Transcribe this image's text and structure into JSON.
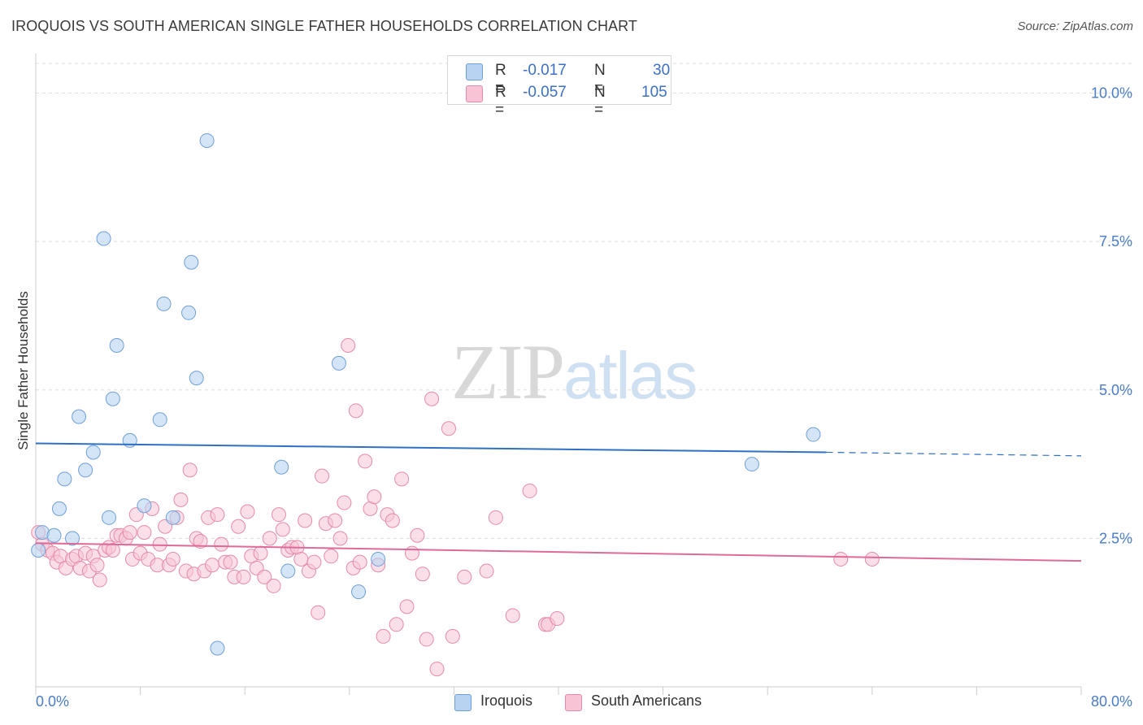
{
  "header": {
    "title": "IROQUOIS VS SOUTH AMERICAN SINGLE FATHER HOUSEHOLDS CORRELATION CHART",
    "source": "Source: ZipAtlas.com"
  },
  "watermark": {
    "zip": "ZIP",
    "atlas": "atlas"
  },
  "legend": {
    "rows": [
      {
        "r_label": "R =",
        "r_value": "-0.017",
        "n_label": "N =",
        "n_value": "30"
      },
      {
        "r_label": "R =",
        "r_value": "-0.057",
        "n_label": "N =",
        "n_value": "105"
      }
    ]
  },
  "bottom_legend": {
    "series1": "Iroquois",
    "series2": "South Americans"
  },
  "colors": {
    "iroquois_fill": "#b8d3f2",
    "iroquois_stroke": "#6f9fd8",
    "iroquois_line": "#2f6fc4",
    "south_fill": "#f8c4d5",
    "south_stroke": "#e58aa9",
    "south_line": "#e06a97"
  },
  "chart_data": {
    "type": "scatter",
    "title": "IROQUOIS VS SOUTH AMERICAN SINGLE FATHER HOUSEHOLDS CORRELATION CHART",
    "xlabel": "",
    "ylabel": "Single Father Households",
    "xlim": [
      0,
      80
    ],
    "ylim": [
      0,
      10.5
    ],
    "x_tick_labels": [
      "0.0%",
      "80.0%"
    ],
    "y_ticks": [
      2.5,
      5.0,
      7.5,
      10.0
    ],
    "y_tick_labels": [
      "2.5%",
      "5.0%",
      "7.5%",
      "10.0%"
    ],
    "grid": true,
    "series": [
      {
        "name": "Iroquois",
        "r": -0.017,
        "n": 30,
        "trend": {
          "x0": 0,
          "y0": 4.1,
          "x1": 60.5,
          "y1": 3.95,
          "dash_to_x": 80,
          "dash_to_y": 3.89
        },
        "points": [
          [
            0.2,
            2.3
          ],
          [
            0.5,
            2.6
          ],
          [
            1.4,
            2.55
          ],
          [
            2.8,
            2.5
          ],
          [
            1.8,
            3.0
          ],
          [
            2.2,
            3.5
          ],
          [
            3.8,
            3.65
          ],
          [
            4.4,
            3.95
          ],
          [
            3.3,
            4.55
          ],
          [
            5.6,
            2.85
          ],
          [
            5.2,
            7.55
          ],
          [
            6.2,
            5.75
          ],
          [
            5.9,
            4.85
          ],
          [
            7.2,
            4.15
          ],
          [
            8.3,
            3.05
          ],
          [
            9.5,
            4.5
          ],
          [
            9.8,
            6.45
          ],
          [
            10.5,
            2.85
          ],
          [
            11.7,
            6.3
          ],
          [
            11.9,
            7.15
          ],
          [
            12.3,
            5.2
          ],
          [
            13.1,
            9.2
          ],
          [
            13.9,
            0.65
          ],
          [
            18.8,
            3.7
          ],
          [
            19.3,
            1.95
          ],
          [
            23.2,
            5.45
          ],
          [
            24.7,
            1.6
          ],
          [
            26.2,
            2.15
          ],
          [
            54.8,
            3.75
          ],
          [
            59.5,
            4.25
          ]
        ]
      },
      {
        "name": "South Americans",
        "r": -0.057,
        "n": 105,
        "trend": {
          "x0": 0,
          "y0": 2.42,
          "x1": 80,
          "y1": 2.12
        },
        "points": [
          [
            0.2,
            2.6
          ],
          [
            0.5,
            2.4
          ],
          [
            0.9,
            2.3
          ],
          [
            1.3,
            2.25
          ],
          [
            1.6,
            2.1
          ],
          [
            1.9,
            2.2
          ],
          [
            2.3,
            2.0
          ],
          [
            2.8,
            2.15
          ],
          [
            3.1,
            2.2
          ],
          [
            3.4,
            2.0
          ],
          [
            3.8,
            2.25
          ],
          [
            4.1,
            1.95
          ],
          [
            4.4,
            2.2
          ],
          [
            4.7,
            2.05
          ],
          [
            4.9,
            1.8
          ],
          [
            5.3,
            2.3
          ],
          [
            5.6,
            2.35
          ],
          [
            5.9,
            2.3
          ],
          [
            6.2,
            2.55
          ],
          [
            6.5,
            2.55
          ],
          [
            6.9,
            2.5
          ],
          [
            7.2,
            2.6
          ],
          [
            7.4,
            2.15
          ],
          [
            7.7,
            2.9
          ],
          [
            8.0,
            2.25
          ],
          [
            8.3,
            2.6
          ],
          [
            8.6,
            2.15
          ],
          [
            8.9,
            3.0
          ],
          [
            9.3,
            2.05
          ],
          [
            9.5,
            2.4
          ],
          [
            9.9,
            2.7
          ],
          [
            10.2,
            2.05
          ],
          [
            10.5,
            2.15
          ],
          [
            10.8,
            2.85
          ],
          [
            11.1,
            3.15
          ],
          [
            11.5,
            1.95
          ],
          [
            11.8,
            3.65
          ],
          [
            12.1,
            1.9
          ],
          [
            12.3,
            2.5
          ],
          [
            12.6,
            2.45
          ],
          [
            12.9,
            1.95
          ],
          [
            13.2,
            2.85
          ],
          [
            13.5,
            2.05
          ],
          [
            13.9,
            2.9
          ],
          [
            14.2,
            2.4
          ],
          [
            14.5,
            2.1
          ],
          [
            14.9,
            2.1
          ],
          [
            15.2,
            1.85
          ],
          [
            15.5,
            2.7
          ],
          [
            15.9,
            1.85
          ],
          [
            16.2,
            2.95
          ],
          [
            16.5,
            2.2
          ],
          [
            16.9,
            2.0
          ],
          [
            17.2,
            2.25
          ],
          [
            17.5,
            1.85
          ],
          [
            17.9,
            2.5
          ],
          [
            18.2,
            1.7
          ],
          [
            18.6,
            2.9
          ],
          [
            18.9,
            2.65
          ],
          [
            19.3,
            2.3
          ],
          [
            19.6,
            2.35
          ],
          [
            20.0,
            2.35
          ],
          [
            20.3,
            2.15
          ],
          [
            20.6,
            2.8
          ],
          [
            20.9,
            1.95
          ],
          [
            21.3,
            2.1
          ],
          [
            21.6,
            1.25
          ],
          [
            21.9,
            3.55
          ],
          [
            22.2,
            2.75
          ],
          [
            22.6,
            2.2
          ],
          [
            22.9,
            2.8
          ],
          [
            23.3,
            2.5
          ],
          [
            23.6,
            3.1
          ],
          [
            23.9,
            5.75
          ],
          [
            24.3,
            2.0
          ],
          [
            24.5,
            4.65
          ],
          [
            24.8,
            2.1
          ],
          [
            25.2,
            3.8
          ],
          [
            25.6,
            3.0
          ],
          [
            25.9,
            3.2
          ],
          [
            26.2,
            2.05
          ],
          [
            26.6,
            0.85
          ],
          [
            26.9,
            2.9
          ],
          [
            27.3,
            2.8
          ],
          [
            27.6,
            1.05
          ],
          [
            28.0,
            3.5
          ],
          [
            28.4,
            1.35
          ],
          [
            28.8,
            2.25
          ],
          [
            29.2,
            2.55
          ],
          [
            29.6,
            1.9
          ],
          [
            29.9,
            0.8
          ],
          [
            30.3,
            4.85
          ],
          [
            30.7,
            0.3
          ],
          [
            31.6,
            4.35
          ],
          [
            31.9,
            0.85
          ],
          [
            32.8,
            1.85
          ],
          [
            34.5,
            1.95
          ],
          [
            35.2,
            2.85
          ],
          [
            36.5,
            1.2
          ],
          [
            37.8,
            3.3
          ],
          [
            39.0,
            1.05
          ],
          [
            39.2,
            1.05
          ],
          [
            39.9,
            1.15
          ],
          [
            61.6,
            2.15
          ],
          [
            64.0,
            2.15
          ]
        ]
      }
    ]
  }
}
